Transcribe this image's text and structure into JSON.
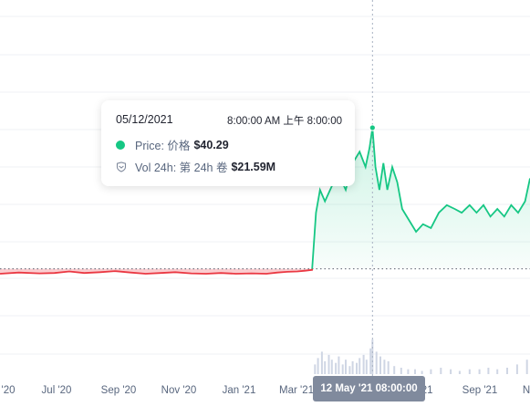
{
  "tooltip": {
    "date": "05/12/2021",
    "time": "8:00:00 AM 上午 8:00:00",
    "price_label": "Price: 价格",
    "price_value": "$40.29",
    "volume_label": "Vol 24h: 第 24h 卷",
    "volume_value": "$21.59M"
  },
  "x_badge": "12 May '21 08:00:00",
  "colors": {
    "up": "#16c784",
    "down": "#ea3943",
    "grid": "#eff2f5",
    "axis_text": "#58667e",
    "badge": "#808a9d",
    "volume_bar": "#cfd6e4"
  },
  "chart_data": {
    "type": "area",
    "baseline_style": "dotted",
    "price_colors": "red below baseline, green above baseline",
    "xaxis_ticks": [
      "'20",
      "Jul '20",
      "Sep '20",
      "Nov '20",
      "Jan '21",
      "Mar '21",
      "'21",
      "Sep '21",
      "N"
    ],
    "series": [
      {
        "name": "Price",
        "x": [
          "2020-05-01",
          "2020-05-20",
          "2020-06-10",
          "2020-06-25",
          "2020-07-10",
          "2020-07-25",
          "2020-08-10",
          "2020-08-25",
          "2020-09-10",
          "2020-09-25",
          "2020-10-10",
          "2020-10-25",
          "2020-11-10",
          "2020-11-25",
          "2020-12-10",
          "2020-12-25",
          "2021-01-10",
          "2021-01-25",
          "2021-02-05",
          "2021-02-15",
          "2021-02-25",
          "2021-03-05",
          "2021-03-12",
          "2021-03-16",
          "2021-03-20",
          "2021-03-25",
          "2021-04-01",
          "2021-04-08",
          "2021-04-15",
          "2021-04-22",
          "2021-04-29",
          "2021-05-05",
          "2021-05-09",
          "2021-05-12",
          "2021-05-15",
          "2021-05-19",
          "2021-05-23",
          "2021-05-27",
          "2021-06-01",
          "2021-06-06",
          "2021-06-11",
          "2021-06-18",
          "2021-06-25",
          "2021-07-02",
          "2021-07-10",
          "2021-07-18",
          "2021-07-26",
          "2021-08-03",
          "2021-08-10",
          "2021-08-18",
          "2021-08-25",
          "2021-09-01",
          "2021-09-08",
          "2021-09-15",
          "2021-09-22",
          "2021-09-29",
          "2021-10-06",
          "2021-10-13",
          "2021-10-18"
        ],
        "values": [
          2.0,
          2.3,
          2.1,
          2.2,
          2.6,
          2.2,
          2.4,
          2.7,
          2.3,
          2.0,
          2.2,
          2.4,
          2.1,
          2.0,
          2.2,
          2.0,
          2.1,
          2.0,
          2.3,
          2.5,
          2.6,
          2.8,
          3.0,
          18.0,
          24.0,
          21.0,
          25.0,
          28.0,
          24.0,
          31.0,
          34.0,
          30.0,
          35.0,
          40.29,
          30.0,
          24.0,
          31.0,
          24.0,
          30.0,
          26.0,
          19.0,
          16.0,
          13.0,
          15.0,
          14.0,
          18.0,
          20.0,
          19.0,
          18.0,
          20.0,
          18.0,
          20.0,
          17.0,
          19.0,
          17.0,
          20.0,
          18.0,
          21.0,
          27.0
        ]
      },
      {
        "name": "Vol 24h",
        "x": [
          "2021-03-15",
          "2021-03-18",
          "2021-03-22",
          "2021-03-25",
          "2021-03-29",
          "2021-04-01",
          "2021-04-05",
          "2021-04-08",
          "2021-04-12",
          "2021-04-15",
          "2021-04-19",
          "2021-04-22",
          "2021-04-26",
          "2021-04-29",
          "2021-05-03",
          "2021-05-06",
          "2021-05-10",
          "2021-05-12",
          "2021-05-16",
          "2021-05-20",
          "2021-05-24",
          "2021-05-28",
          "2021-06-03",
          "2021-06-10",
          "2021-06-17",
          "2021-06-24",
          "2021-07-01",
          "2021-07-10",
          "2021-07-20",
          "2021-07-30",
          "2021-08-08",
          "2021-08-18",
          "2021-08-28",
          "2021-09-06",
          "2021-09-15",
          "2021-09-25",
          "2021-10-05",
          "2021-10-15"
        ],
        "values": [
          6,
          10,
          14,
          8,
          12,
          9,
          7,
          11,
          6,
          9,
          5,
          8,
          7,
          10,
          12,
          9,
          16,
          21.59,
          14,
          11,
          9,
          8,
          5,
          4,
          3,
          3,
          2,
          3,
          4,
          3,
          2,
          3,
          3,
          4,
          3,
          4,
          6,
          9
        ]
      }
    ],
    "highlight": {
      "date": "05/12/2021",
      "price": 40.29,
      "volume": 21.59
    }
  }
}
